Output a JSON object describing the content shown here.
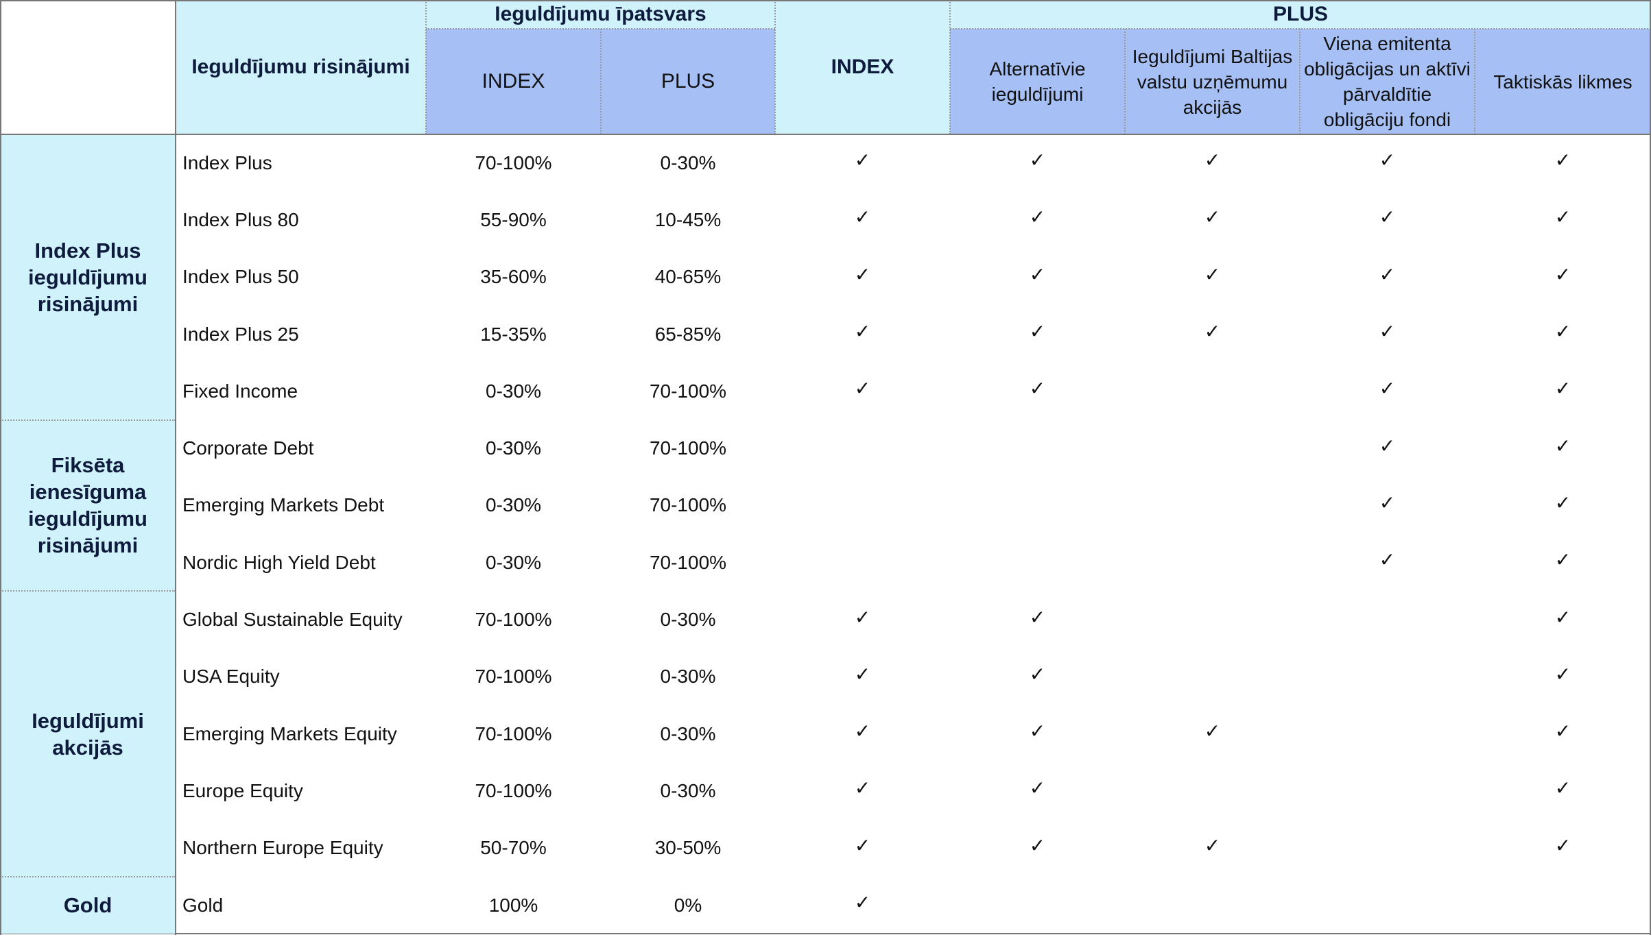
{
  "header": {
    "solutions_label": "Ieguldījumu risinājumi",
    "share_label": "Ieguldījumu īpatsvars",
    "share_index_label": "INDEX",
    "share_plus_label": "PLUS",
    "index_label": "INDEX",
    "plus_label": "PLUS",
    "plus_columns": [
      "Alternatīvie ieguldījumi",
      "Ieguldījumi Baltijas valstu uzņēmumu akcijās",
      "Viena emitenta obligācijas un aktīvi pārvaldītie obligāciju fondi",
      "Taktiskās likmes"
    ]
  },
  "check_mark": "✓",
  "groups": [
    {
      "label": "Index Plus ieguldījumu risinājumi",
      "row_count": 5
    },
    {
      "label": "Fiksēta ienesīguma ieguldījumu risinājumi",
      "row_count": 3
    },
    {
      "label": "Ieguldījumi akcijās",
      "row_count": 5
    },
    {
      "label": "Gold",
      "row_count": 1
    }
  ],
  "rows": [
    {
      "name": "Index Plus",
      "index_share": "70-100%",
      "plus_share": "0-30%",
      "checks": [
        true,
        true,
        true,
        true,
        true
      ]
    },
    {
      "name": "Index Plus 80",
      "index_share": "55-90%",
      "plus_share": "10-45%",
      "checks": [
        true,
        true,
        true,
        true,
        true
      ]
    },
    {
      "name": "Index Plus 50",
      "index_share": "35-60%",
      "plus_share": "40-65%",
      "checks": [
        true,
        true,
        true,
        true,
        true
      ]
    },
    {
      "name": "Index Plus 25",
      "index_share": "15-35%",
      "plus_share": "65-85%",
      "checks": [
        true,
        true,
        true,
        true,
        true
      ]
    },
    {
      "name": "Fixed Income",
      "index_share": "0-30%",
      "plus_share": "70-100%",
      "checks": [
        true,
        true,
        false,
        true,
        true
      ]
    },
    {
      "name": "Corporate Debt",
      "index_share": "0-30%",
      "plus_share": "70-100%",
      "checks": [
        false,
        false,
        false,
        true,
        true
      ]
    },
    {
      "name": "Emerging Markets Debt",
      "index_share": "0-30%",
      "plus_share": "70-100%",
      "checks": [
        false,
        false,
        false,
        true,
        true
      ]
    },
    {
      "name": "Nordic High Yield Debt",
      "index_share": "0-30%",
      "plus_share": "70-100%",
      "checks": [
        false,
        false,
        false,
        true,
        true
      ]
    },
    {
      "name": "Global Sustainable Equity",
      "index_share": "70-100%",
      "plus_share": "0-30%",
      "checks": [
        true,
        true,
        false,
        false,
        true
      ]
    },
    {
      "name": "USA Equity",
      "index_share": "70-100%",
      "plus_share": "0-30%",
      "checks": [
        true,
        true,
        false,
        false,
        true
      ]
    },
    {
      "name": "Emerging Markets Equity",
      "index_share": "70-100%",
      "plus_share": "0-30%",
      "checks": [
        true,
        true,
        true,
        false,
        true
      ]
    },
    {
      "name": "Europe Equity",
      "index_share": "70-100%",
      "plus_share": "0-30%",
      "checks": [
        true,
        true,
        false,
        false,
        true
      ]
    },
    {
      "name": "Northern Europe Equity",
      "index_share": "50-70%",
      "plus_share": "30-50%",
      "checks": [
        true,
        true,
        true,
        false,
        true
      ]
    },
    {
      "name": "Gold",
      "index_share": "100%",
      "plus_share": "0%",
      "checks": [
        true,
        false,
        false,
        false,
        false
      ]
    }
  ],
  "colors": {
    "header_light": "#d0f2fa",
    "header_blue": "#a6c0f5",
    "group_fill": "#d0f2fa",
    "header_text": "#0e1b3c",
    "grid_line": "#777777"
  }
}
